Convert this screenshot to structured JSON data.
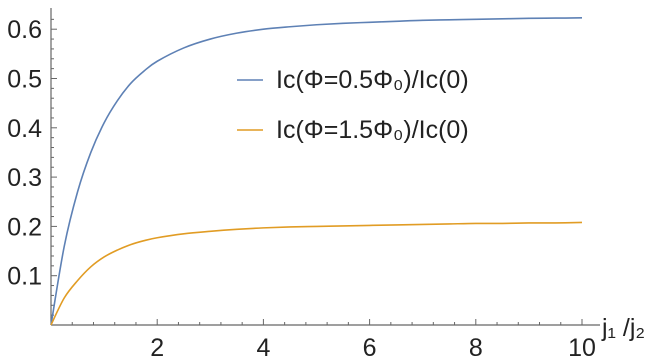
{
  "chart_data": {
    "type": "line",
    "title": "",
    "xlabel": "j₁ /j₂",
    "ylabel": "",
    "xlim": [
      0,
      10
    ],
    "ylim": [
      0,
      0.65
    ],
    "grid": false,
    "legend_position": "upper-right",
    "x_ticks": [
      2,
      4,
      6,
      8,
      10
    ],
    "x_tick_labels": [
      "2",
      "4",
      "6",
      "8",
      "10"
    ],
    "y_ticks": [
      0.1,
      0.2,
      0.3,
      0.4,
      0.5,
      0.6
    ],
    "y_tick_labels": [
      "0.1",
      "0.2",
      "0.3",
      "0.4",
      "0.5",
      "0.6"
    ],
    "series": [
      {
        "name": "Ic(Φ=0.5Φ₀)/Ic(0)",
        "color": "#5e81b5",
        "x": [
          0,
          0.25,
          0.5,
          0.75,
          1,
          1.25,
          1.5,
          1.75,
          2,
          2.5,
          3,
          3.5,
          4,
          4.5,
          5,
          5.5,
          6,
          6.5,
          7,
          7.5,
          8,
          8.5,
          9,
          9.5,
          10
        ],
        "y": [
          0,
          0.16,
          0.27,
          0.35,
          0.41,
          0.455,
          0.49,
          0.515,
          0.535,
          0.562,
          0.58,
          0.592,
          0.6,
          0.605,
          0.609,
          0.612,
          0.614,
          0.616,
          0.618,
          0.619,
          0.62,
          0.621,
          0.622,
          0.6225,
          0.623
        ]
      },
      {
        "name": "Ic(Φ=1.5Φ₀)/Ic(0)",
        "color": "#e19c24",
        "x": [
          0,
          0.25,
          0.5,
          0.75,
          1,
          1.25,
          1.5,
          1.75,
          2,
          2.5,
          3,
          3.5,
          4,
          4.5,
          5,
          5.5,
          6,
          6.5,
          7,
          7.5,
          8,
          8.5,
          9,
          9.5,
          10
        ],
        "y": [
          0,
          0.055,
          0.09,
          0.118,
          0.138,
          0.152,
          0.163,
          0.171,
          0.177,
          0.185,
          0.19,
          0.194,
          0.197,
          0.199,
          0.2,
          0.201,
          0.202,
          0.203,
          0.204,
          0.205,
          0.206,
          0.206,
          0.207,
          0.207,
          0.208
        ]
      }
    ]
  }
}
